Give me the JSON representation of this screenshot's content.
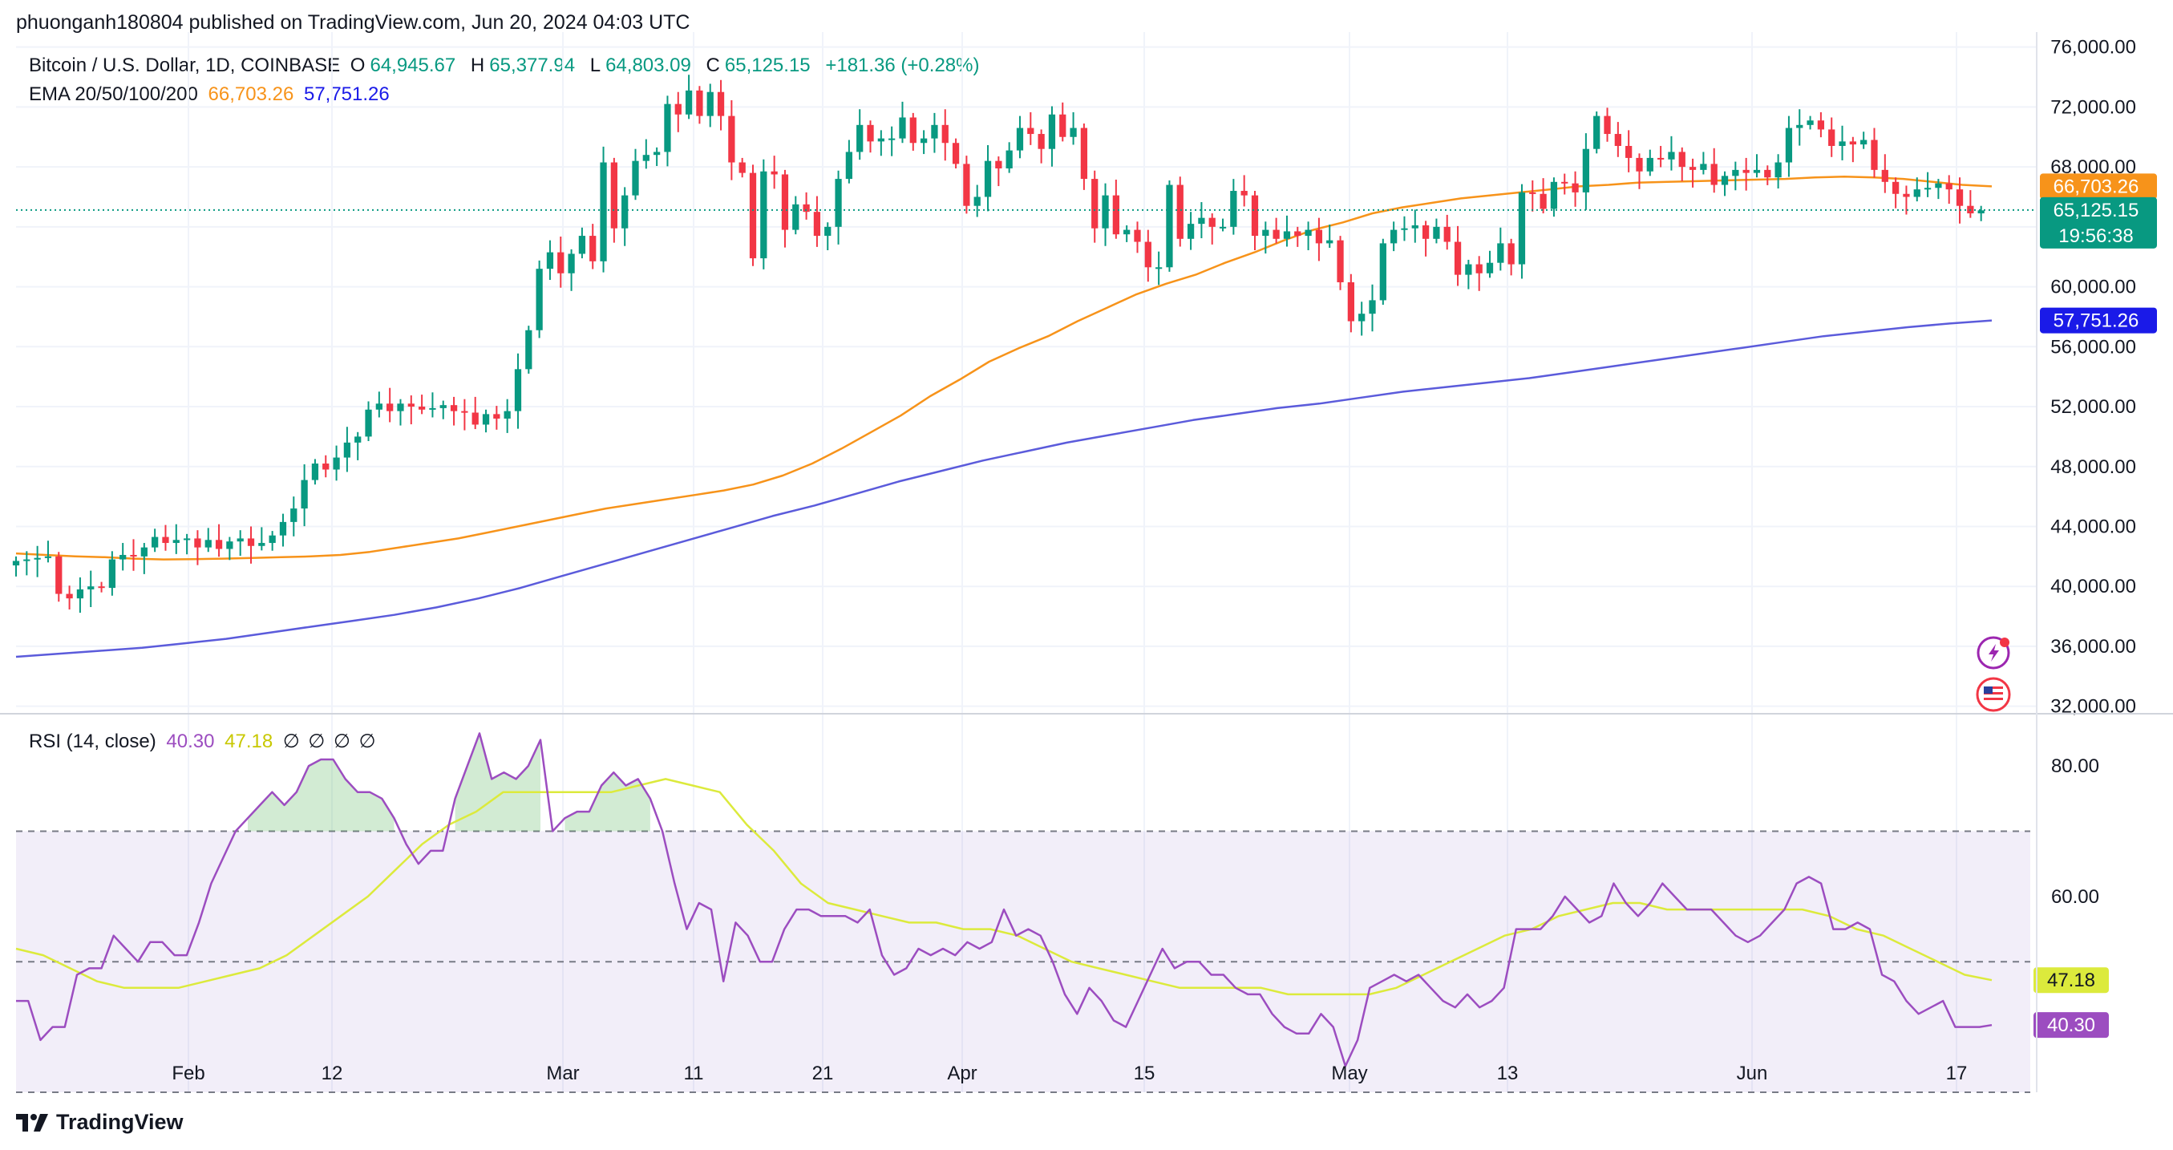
{
  "header": {
    "published": "phuonganh180804 published on TradingView.com, Jun 20, 2024 04:03 UTC"
  },
  "legend": {
    "symbol": "Bitcoin / U.S. Dollar, 1D, COINBASE",
    "o_label": "O",
    "o_value": "64,945.67",
    "h_label": "H",
    "h_value": "65,377.94",
    "l_label": "L",
    "l_value": "64,803.09",
    "c_label": "C",
    "c_value": "65,125.15",
    "change": "+181.36 (+0.28%)",
    "ema_label": "EMA 20/50/100/200",
    "ema_value_1": "66,703.26",
    "ema_value_2": "57,751.26"
  },
  "rsi_legend": {
    "label": "RSI (14, close)",
    "rsi_value": "40.30",
    "ma_value": "47.18",
    "nan_values": "∅ ∅ ∅ ∅"
  },
  "price_labels": {
    "ema_short": "66,703.26",
    "last": "65,125.15",
    "countdown": "19:56:38",
    "ema_long": "57,751.26",
    "rsi_ma": "47.18",
    "rsi": "40.30"
  },
  "footer": {
    "brand": "TradingView"
  },
  "colors": {
    "up": "#089981",
    "down": "#f23645",
    "ema_short": "#f7931a",
    "ema_long": "#5b5bdb",
    "rsi": "#9c4dc0",
    "rsi_ma": "#dcea3c",
    "rsi_band": "#7e57c2"
  },
  "chart_data": [
    {
      "type": "candlestick",
      "title": "Bitcoin / U.S. Dollar, 1D, COINBASE",
      "x_ticks": [
        "Feb",
        "12",
        "Mar",
        "11",
        "21",
        "Apr",
        "15",
        "May",
        "13",
        "Jun",
        "17"
      ],
      "y_ticks": [
        "32,000.00",
        "36,000.00",
        "40,000.00",
        "44,000.00",
        "48,000.00",
        "52,000.00",
        "56,000.00",
        "60,000.00",
        "64,000.00",
        "68,000.00",
        "72,000.00",
        "76,000.00"
      ],
      "ylim": [
        31500,
        77000
      ],
      "grid": true,
      "close_series": [
        41700,
        41800,
        41900,
        42000,
        39500,
        39200,
        39800,
        40000,
        39900,
        41800,
        42100,
        42000,
        42600,
        43300,
        42900,
        43100,
        43200,
        42600,
        43100,
        42500,
        43000,
        43200,
        42700,
        42900,
        43400,
        44300,
        45200,
        47100,
        48200,
        47800,
        48600,
        49600,
        50000,
        51800,
        52200,
        51700,
        52200,
        52000,
        51800,
        51900,
        52100,
        51700,
        51600,
        50800,
        51500,
        51200,
        51700,
        54500,
        57100,
        61200,
        62300,
        60900,
        62200,
        63400,
        61700,
        68300,
        63900,
        66100,
        68400,
        68800,
        69000,
        72200,
        71500,
        73100,
        71400,
        73000,
        71400,
        68300,
        67600,
        61900,
        67700,
        67500,
        63800,
        65500,
        65000,
        63400,
        64000,
        67200,
        69000,
        70800,
        69700,
        69900,
        69900,
        71300,
        69600,
        69900,
        70800,
        69600,
        68200,
        65400,
        66000,
        68400,
        67900,
        69100,
        70600,
        70200,
        69200,
        71500,
        70000,
        70600,
        67200,
        63900,
        66100,
        63500,
        63800,
        63000,
        61300,
        61300,
        66800,
        63200,
        64200,
        64600,
        64000,
        64000,
        66400,
        66100,
        63400,
        63800,
        63200,
        63700,
        63400,
        63800,
        62900,
        63100,
        60300,
        57700,
        58200,
        59100,
        62900,
        63800,
        63900,
        64100,
        63200,
        64000,
        63000,
        60800,
        61500,
        60900,
        61600,
        62900,
        61500,
        66300,
        66200,
        65200,
        67000,
        66900,
        66300,
        69200,
        71400,
        70200,
        69400,
        68600,
        67700,
        68600,
        68500,
        69000,
        68000,
        67800,
        68200,
        66800,
        67400,
        67800,
        67600,
        67800,
        67300,
        68300,
        70600,
        70800,
        71100,
        70500,
        69400,
        69700,
        69500,
        69800,
        67800,
        67000,
        66200,
        66000,
        66500,
        66600,
        66900,
        66500,
        65400,
        64900,
        65100
      ],
      "series": [
        {
          "name": "EMA 20",
          "values": [
            42200,
            42100,
            42000,
            41950,
            41850,
            41800,
            41820,
            41850,
            41900,
            41950,
            42000,
            42100,
            42300,
            42600,
            42900,
            43200,
            43600,
            44000,
            44400,
            44800,
            45200,
            45500,
            45800,
            46100,
            46400,
            46800,
            47400,
            48200,
            49200,
            50300,
            51400,
            52700,
            53800,
            55000,
            55900,
            56700,
            57700,
            58600,
            59500,
            60200,
            60800,
            61600,
            62300,
            63100,
            63800,
            64300,
            64900,
            65300,
            65600,
            65900,
            66100,
            66300,
            66500,
            66700,
            66800,
            66950,
            67000,
            67050,
            67100,
            67150,
            67200,
            67300,
            67350,
            67300,
            67200,
            67000,
            66800,
            66703
          ]
        },
        {
          "name": "EMA 200",
          "values": [
            35300,
            35500,
            35700,
            35900,
            36200,
            36500,
            36900,
            37300,
            37700,
            38100,
            38600,
            39200,
            39900,
            40700,
            41500,
            42300,
            43100,
            43900,
            44700,
            45400,
            46200,
            47000,
            47700,
            48400,
            49000,
            49600,
            50100,
            50600,
            51100,
            51500,
            51900,
            52200,
            52600,
            53000,
            53300,
            53600,
            53900,
            54300,
            54700,
            55100,
            55500,
            55900,
            56300,
            56700,
            57000,
            57300,
            57550,
            57751
          ]
        }
      ]
    },
    {
      "type": "line",
      "title": "RSI (14, close)",
      "y_ticks": [
        "60.00",
        "80.00"
      ],
      "ylim": [
        30,
        88
      ],
      "bands": [
        30,
        50,
        70
      ],
      "series": [
        {
          "name": "RSI",
          "values": [
            44,
            44,
            38,
            40,
            40,
            48,
            49,
            49,
            54,
            52,
            50,
            53,
            53,
            51,
            51,
            56,
            62,
            66,
            70,
            72,
            74,
            76,
            74,
            76,
            80,
            81,
            81,
            78,
            76,
            76,
            75,
            72,
            68,
            65,
            67,
            67,
            75,
            80,
            85,
            78,
            79,
            78,
            80,
            84,
            70,
            72,
            73,
            73,
            77,
            79,
            77,
            78,
            75,
            70,
            62,
            55,
            59,
            58,
            47,
            56,
            54,
            50,
            50,
            55,
            58,
            58,
            57,
            57,
            57,
            56,
            58,
            51,
            48,
            49,
            52,
            51,
            52,
            51,
            53,
            52,
            53,
            58,
            54,
            55,
            54,
            50,
            45,
            42,
            46,
            44,
            41,
            40,
            44,
            48,
            52,
            49,
            50,
            50,
            48,
            48,
            46,
            45,
            45,
            42,
            40,
            39,
            39,
            42,
            40,
            34,
            38,
            46,
            47,
            48,
            47,
            48,
            46,
            44,
            43,
            45,
            43,
            44,
            46,
            55,
            55,
            55,
            57,
            60,
            58,
            56,
            57,
            62,
            59,
            57,
            59,
            62,
            60,
            58,
            58,
            58,
            56,
            54,
            53,
            54,
            56,
            58,
            62,
            63,
            62,
            55,
            55,
            56,
            55,
            48,
            47,
            44,
            42,
            43,
            44,
            40,
            40,
            40,
            40.3
          ]
        },
        {
          "name": "RSI MA",
          "values": [
            52,
            51,
            49,
            47,
            46,
            46,
            46,
            47,
            48,
            49,
            51,
            54,
            57,
            60,
            64,
            68,
            71,
            73,
            76,
            76,
            76,
            76,
            76,
            77,
            78,
            77,
            76,
            71,
            67,
            62,
            59,
            58,
            57,
            56,
            56,
            55,
            55,
            54,
            52,
            50,
            49,
            48,
            47,
            46,
            46,
            46,
            46,
            45,
            45,
            45,
            45,
            46,
            48,
            50,
            52,
            54,
            55,
            57,
            58,
            59,
            59,
            58,
            58,
            58,
            58,
            58,
            58,
            57,
            55,
            54,
            52,
            50,
            48,
            47.18
          ]
        }
      ]
    }
  ]
}
